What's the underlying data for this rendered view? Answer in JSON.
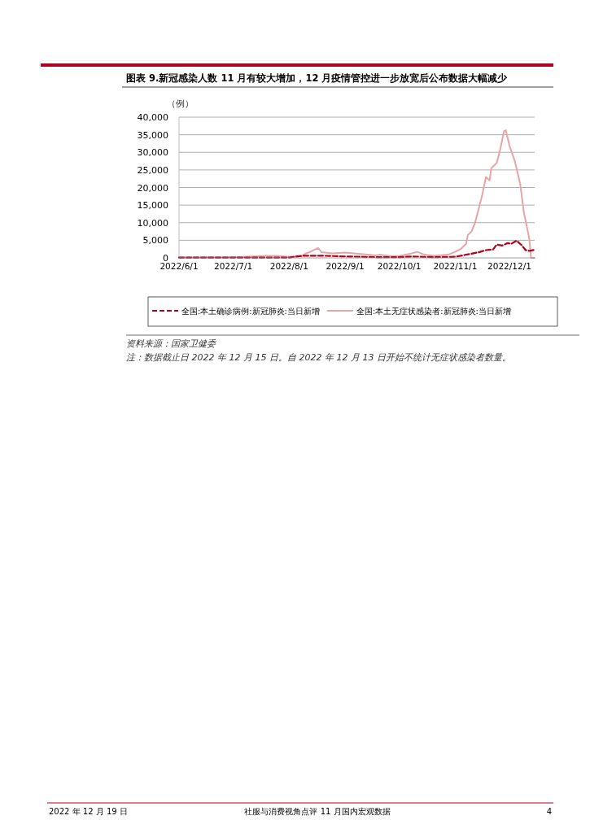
{
  "chart_data": {
    "type": "line",
    "title": "图表 9.新冠感染人数 11 月有较大增加，12 月疫情管控进一步放宽后公布数据大幅减少",
    "ylabel": "（例）",
    "annotations": [
      "资料来源：国家卫健委",
      "注：数据截止日 2022 年 12 月 15 日。自 2022 年 12 月 13 日开始不统计无症状感染者数量。",
      "2022 年 12 月 19 日",
      "社服与消费视角点评 11 月国内宏观数据",
      "4"
    ],
    "xlim": [
      "2022-06-01",
      "2022-12-15"
    ],
    "xticks": [
      {
        "value": "2022-06-01",
        "label": "2022/6/1"
      },
      {
        "value": "2022-07-01",
        "label": "2022/7/1"
      },
      {
        "value": "2022-08-01",
        "label": "2022/8/1"
      },
      {
        "value": "2022-09-01",
        "label": "2022/9/1"
      },
      {
        "value": "2022-10-01",
        "label": "2022/10/1"
      },
      {
        "value": "2022-11-01",
        "label": "2022/11/1"
      },
      {
        "value": "2022-12-01",
        "label": "2022/12/1"
      }
    ],
    "ylim": [
      0,
      40000
    ],
    "yticks": [
      {
        "value": 0,
        "label": "0"
      },
      {
        "value": 5000,
        "label": "5,000"
      },
      {
        "value": 10000,
        "label": "10,000"
      },
      {
        "value": 15000,
        "label": "15,000"
      },
      {
        "value": 20000,
        "label": "20,000"
      },
      {
        "value": 25000,
        "label": "25,000"
      },
      {
        "value": 30000,
        "label": "30,000"
      },
      {
        "value": 35000,
        "label": "35,000"
      },
      {
        "value": 40000,
        "label": "40,000"
      }
    ],
    "grid": "y",
    "legend": "bottom",
    "series": [
      {
        "name": "全国:本土确诊病例:新冠肺炎:当日新增",
        "color": "#b3001b",
        "line_style": "dashed",
        "x": [
          "2022-06-01",
          "2022-07-15",
          "2022-08-01",
          "2022-08-08",
          "2022-08-20",
          "2022-09-01",
          "2022-09-20",
          "2022-10-01",
          "2022-10-08",
          "2022-10-20",
          "2022-11-01",
          "2022-11-05",
          "2022-11-10",
          "2022-11-14",
          "2022-11-18",
          "2022-11-22",
          "2022-11-24",
          "2022-11-27",
          "2022-11-30",
          "2022-12-02",
          "2022-12-05",
          "2022-12-08",
          "2022-12-10",
          "2022-12-12",
          "2022-12-15"
        ],
        "values": [
          100,
          100,
          100,
          600,
          600,
          400,
          200,
          200,
          400,
          200,
          300,
          700,
          1200,
          1600,
          2200,
          2400,
          3800,
          3500,
          4200,
          4000,
          4900,
          3500,
          2200,
          2000,
          2300
        ]
      },
      {
        "name": "全国:本土无症状感染者:新冠肺炎:当日新增",
        "color": "#e8a5a5",
        "line_style": "solid",
        "x": [
          "2022-06-01",
          "2022-07-01",
          "2022-07-20",
          "2022-07-25",
          "2022-08-01",
          "2022-08-08",
          "2022-08-10",
          "2022-08-13",
          "2022-08-17",
          "2022-08-19",
          "2022-08-25",
          "2022-09-01",
          "2022-09-10",
          "2022-09-18",
          "2022-09-20",
          "2022-09-25",
          "2022-10-01",
          "2022-10-08",
          "2022-10-11",
          "2022-10-15",
          "2022-10-20",
          "2022-10-28",
          "2022-11-01",
          "2022-11-04",
          "2022-11-07",
          "2022-11-08",
          "2022-11-10",
          "2022-11-12",
          "2022-11-14",
          "2022-11-16",
          "2022-11-18",
          "2022-11-20",
          "2022-11-21",
          "2022-11-24",
          "2022-11-26",
          "2022-11-28",
          "2022-11-29",
          "2022-12-01",
          "2022-12-04",
          "2022-12-07",
          "2022-12-09",
          "2022-12-11",
          "2022-12-12",
          "2022-12-13",
          "2022-12-15"
        ],
        "values": [
          100,
          200,
          600,
          600,
          300,
          500,
          1200,
          1800,
          2800,
          1600,
          1300,
          1500,
          1100,
          700,
          900,
          600,
          500,
          1300,
          1700,
          900,
          600,
          900,
          1700,
          2500,
          4000,
          6500,
          7500,
          10000,
          14000,
          18000,
          23000,
          22000,
          25500,
          27000,
          31000,
          36000,
          36300,
          32000,
          27500,
          21000,
          13000,
          8000,
          5500,
          0,
          0
        ]
      }
    ]
  }
}
